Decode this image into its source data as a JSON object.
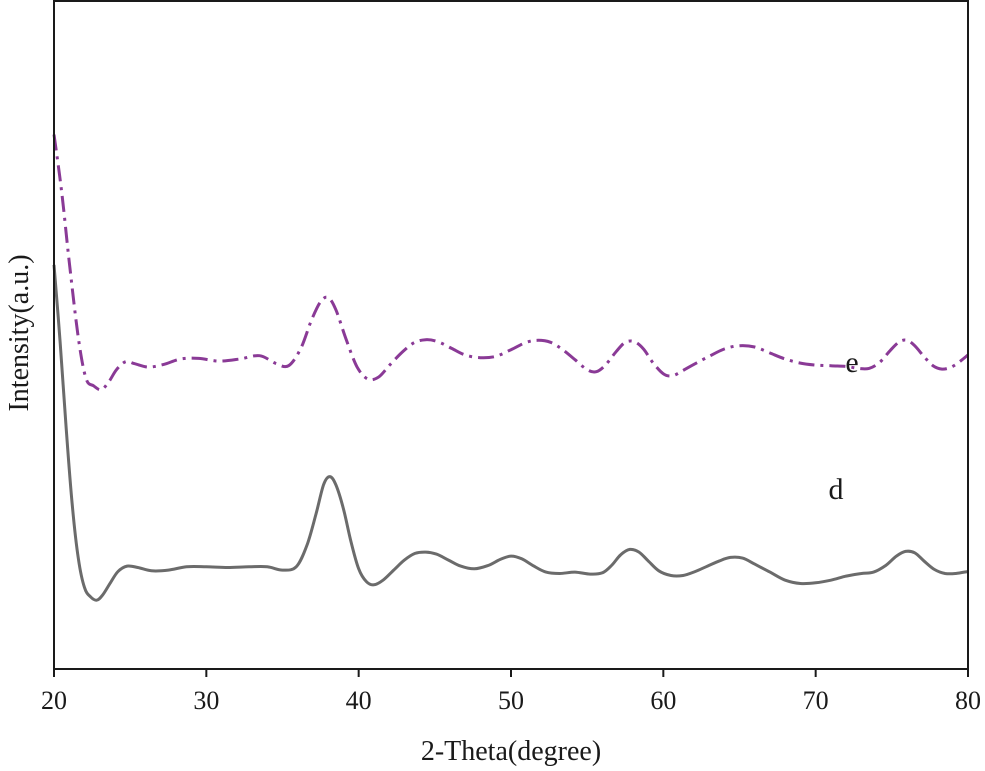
{
  "chart_data": {
    "type": "line",
    "xlabel": "2-Theta(degree)",
    "ylabel": "Intensity(a.u.)",
    "xlim": [
      20,
      80
    ],
    "ylim": [
      0,
      100
    ],
    "xticks": [
      20,
      30,
      40,
      50,
      60,
      70,
      80
    ],
    "yticks_visible": false,
    "grid": false,
    "legend": "none",
    "series": [
      {
        "name": "e",
        "color": "#8a3a96",
        "dash": "dash-dot",
        "x": [
          20,
          20.5,
          21,
          21.6,
          22.1,
          22.6,
          23.1,
          23.6,
          24.1,
          24.7,
          25.3,
          26.2,
          27.2,
          28.3,
          29.5,
          30.8,
          32.2,
          33.5,
          34.6,
          35.4,
          36.2,
          36.9,
          37.5,
          38.0,
          38.5,
          39.2,
          39.9,
          40.6,
          41.3,
          42.0,
          42.8,
          43.6,
          44.4,
          45.2,
          46.1,
          47.0,
          48.0,
          49.0,
          50.0,
          51.0,
          51.8,
          52.6,
          53.4,
          54.2,
          55.0,
          55.6,
          56.2,
          56.9,
          57.5,
          58.1,
          58.7,
          59.3,
          60.0,
          60.6,
          61.3,
          62.0,
          63.0,
          64.0,
          65.0,
          66.0,
          67.0,
          68.0,
          69.0,
          70.0,
          71.0,
          72.0,
          72.8,
          73.5,
          74.2,
          74.9,
          75.5,
          76.0,
          76.5,
          77.1,
          77.7,
          78.3,
          78.9,
          79.5,
          80.0
        ],
        "y": [
          80.0,
          71.5,
          61.0,
          49.5,
          43.5,
          42.4,
          41.8,
          43.0,
          44.8,
          46.0,
          45.7,
          45.2,
          45.6,
          46.4,
          46.5,
          46.1,
          46.4,
          46.9,
          45.7,
          45.4,
          48.0,
          52.2,
          55.0,
          55.6,
          53.8,
          49.2,
          45.2,
          43.4,
          43.7,
          45.4,
          47.3,
          48.8,
          49.3,
          49.0,
          48.0,
          47.0,
          46.6,
          46.8,
          47.8,
          48.9,
          49.2,
          48.9,
          47.8,
          46.3,
          44.8,
          44.5,
          45.5,
          47.5,
          48.9,
          49.0,
          47.9,
          45.9,
          44.2,
          43.9,
          44.7,
          45.6,
          46.8,
          47.9,
          48.4,
          48.2,
          47.3,
          46.4,
          45.8,
          45.5,
          45.4,
          45.3,
          45.0,
          45.0,
          45.9,
          47.7,
          49.0,
          49.2,
          48.4,
          46.8,
          45.4,
          44.9,
          45.2,
          46.1,
          47.0
        ]
      },
      {
        "name": "d",
        "color": "#6b6b6b",
        "dash": "solid",
        "x": [
          20,
          20.4,
          20.8,
          21.2,
          21.6,
          22.0,
          22.4,
          22.8,
          23.2,
          23.7,
          24.2,
          24.8,
          25.5,
          26.4,
          27.5,
          28.7,
          30.0,
          31.4,
          32.8,
          34.0,
          35.0,
          35.9,
          36.6,
          37.2,
          37.7,
          38.1,
          38.5,
          39.0,
          39.5,
          40.0,
          40.5,
          41.0,
          41.6,
          42.3,
          43.0,
          43.7,
          44.4,
          45.1,
          45.9,
          46.7,
          47.6,
          48.5,
          49.3,
          50.0,
          50.7,
          51.5,
          52.3,
          53.2,
          54.2,
          55.2,
          56.0,
          56.6,
          57.2,
          57.8,
          58.4,
          59.0,
          59.7,
          60.5,
          61.3,
          62.1,
          62.9,
          63.7,
          64.4,
          65.2,
          66.0,
          67.0,
          68.0,
          69.0,
          70.0,
          71.0,
          72.0,
          73.0,
          73.8,
          74.6,
          75.3,
          75.9,
          76.5,
          77.1,
          77.8,
          78.5,
          79.2,
          80.0
        ],
        "y": [
          60.5,
          49.0,
          36.0,
          24.5,
          16.5,
          12.2,
          10.8,
          10.3,
          11.1,
          12.9,
          14.6,
          15.4,
          15.2,
          14.7,
          14.8,
          15.3,
          15.3,
          15.2,
          15.3,
          15.3,
          14.8,
          15.3,
          18.5,
          23.2,
          27.6,
          28.8,
          27.6,
          24.0,
          19.0,
          15.0,
          13.1,
          12.6,
          13.3,
          14.8,
          16.3,
          17.3,
          17.5,
          17.2,
          16.3,
          15.4,
          15.0,
          15.5,
          16.4,
          16.9,
          16.5,
          15.4,
          14.5,
          14.3,
          14.5,
          14.2,
          14.4,
          15.5,
          17.1,
          17.9,
          17.5,
          16.2,
          14.7,
          14.0,
          14.0,
          14.6,
          15.4,
          16.2,
          16.7,
          16.6,
          15.7,
          14.5,
          13.3,
          12.8,
          12.9,
          13.3,
          13.9,
          14.3,
          14.5,
          15.5,
          16.9,
          17.6,
          17.4,
          16.2,
          14.9,
          14.3,
          14.3,
          14.6
        ]
      }
    ]
  }
}
